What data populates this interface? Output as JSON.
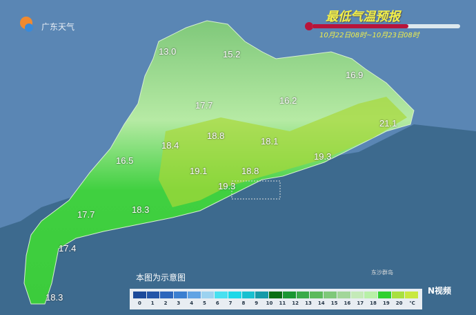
{
  "brand": "广东天气",
  "title": "最低气温预报",
  "period": "10月22日08时~10月23日08时",
  "note": "本图为示意图",
  "island_label": "东沙群岛",
  "watermark": "N视频",
  "temps": [
    "13.0",
    "15.2",
    "16.9",
    "17.7",
    "16.2",
    "21.1",
    "18.8",
    "18.1",
    "18.4",
    "16.5",
    "19.1",
    "18.8",
    "19.3",
    "19.3",
    "17.7",
    "18.3",
    "17.4",
    "18.3"
  ],
  "legend": {
    "ticks": [
      "0",
      "1",
      "2",
      "3",
      "4",
      "5",
      "6",
      "7",
      "8",
      "9",
      "10",
      "11",
      "12",
      "13",
      "14",
      "15",
      "16",
      "17",
      "18",
      "19",
      "20"
    ],
    "unit": "℃",
    "colors": [
      "#1c4a9a",
      "#2456a8",
      "#2c66bc",
      "#3c7fd0",
      "#62a4e4",
      "#9cd2f0",
      "#48e0f0",
      "#1ed8e8",
      "#18c0d0",
      "#169aa8",
      "#0a6e14",
      "#1a9632",
      "#3aaa4a",
      "#5cba5c",
      "#7ec87a",
      "#a2d69a",
      "#c4eab8",
      "#b8f0a8",
      "#30d030",
      "#a8e040",
      "#c8e840"
    ]
  },
  "colors": {
    "sea": "#3d6a8e",
    "title": "#f2f04a",
    "bar": "#b8143a"
  }
}
